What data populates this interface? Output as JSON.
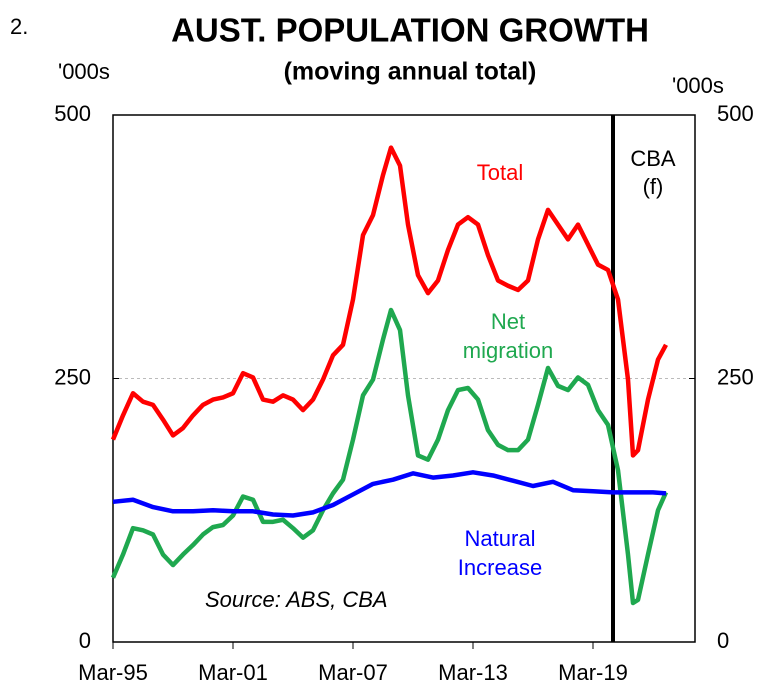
{
  "chart_data": {
    "type": "line",
    "number": "2.",
    "title": "AUST. POPULATION GROWTH",
    "subtitle": "(moving annual total)",
    "y_label": "'000s",
    "y2_label": "'000s",
    "source": "Source: ABS, CBA",
    "forecast_label": [
      "CBA",
      "(f)"
    ],
    "forecast_start": 2020,
    "xlim": [
      1995,
      2024.1
    ],
    "xticks": [
      {
        "value": 1995,
        "label": "Mar-95"
      },
      {
        "value": 2001,
        "label": "Mar-01"
      },
      {
        "value": 2007,
        "label": "Mar-07"
      },
      {
        "value": 2013,
        "label": "Mar-13"
      },
      {
        "value": 2019,
        "label": "Mar-19"
      }
    ],
    "ylim": [
      0,
      500
    ],
    "yticks": [
      0,
      250,
      500
    ],
    "y2lim": [
      0,
      500
    ],
    "y2ticks": [
      0,
      250,
      500
    ],
    "grid_at": [
      250
    ],
    "series": [
      {
        "name": "Total",
        "label_lines": [
          "Total"
        ],
        "color": "#ff0000",
        "x": [
          1995,
          1995.5,
          1996,
          1996.5,
          1997,
          1997.5,
          1998,
          1998.5,
          1999,
          1999.5,
          2000,
          2000.5,
          2001,
          2001.5,
          2002,
          2002.5,
          2003,
          2003.5,
          2004,
          2004.5,
          2005,
          2005.5,
          2006,
          2006.5,
          2007,
          2007.5,
          2008,
          2008.5,
          2008.9,
          2009.35,
          2009.75,
          2010.25,
          2010.75,
          2011.25,
          2011.75,
          2012.25,
          2012.75,
          2013.25,
          2013.75,
          2014.25,
          2014.75,
          2015.25,
          2015.75,
          2016.25,
          2016.75,
          2017.25,
          2017.75,
          2018.25,
          2018.75,
          2019.25,
          2019.75,
          2020.25,
          2020.75,
          2021.0,
          2021.25,
          2021.75,
          2022.25,
          2022.65
        ],
        "values": [
          192,
          215,
          236,
          228,
          225,
          211,
          196,
          203,
          215,
          225,
          230,
          232,
          236,
          255,
          251,
          230,
          228,
          234,
          230,
          220,
          230,
          249,
          272,
          282,
          325,
          386,
          405,
          443,
          469,
          452,
          396,
          348,
          331,
          343,
          372,
          396,
          403,
          396,
          367,
          343,
          338,
          334,
          343,
          382,
          410,
          396,
          382,
          396,
          377,
          358,
          353,
          325,
          249,
          177,
          182,
          230,
          268,
          282
        ]
      },
      {
        "name": "Net migration",
        "label_lines": [
          "Net",
          "migration"
        ],
        "color": "#1fa84f",
        "x": [
          1995,
          1995.5,
          1996,
          1996.5,
          1997,
          1997.5,
          1998,
          1998.5,
          1999,
          1999.5,
          2000,
          2000.5,
          2001,
          2001.5,
          2002,
          2002.5,
          2003,
          2003.5,
          2004,
          2004.5,
          2005,
          2005.5,
          2006,
          2006.5,
          2007,
          2007.5,
          2008,
          2008.5,
          2008.9,
          2009.35,
          2009.75,
          2010.25,
          2010.75,
          2011.25,
          2011.75,
          2012.25,
          2012.75,
          2013.25,
          2013.75,
          2014.25,
          2014.75,
          2015.25,
          2015.75,
          2016.25,
          2016.75,
          2017.25,
          2017.75,
          2018.25,
          2018.75,
          2019.25,
          2019.75,
          2020.25,
          2020.75,
          2021.0,
          2021.25,
          2021.75,
          2022.25,
          2022.65
        ],
        "values": [
          61,
          83,
          108,
          106,
          102,
          83,
          73,
          83,
          92,
          102,
          109,
          111,
          120,
          138,
          135,
          114,
          114,
          116,
          108,
          99,
          106,
          125,
          141,
          154,
          192,
          234,
          249,
          287,
          315,
          296,
          234,
          177,
          173,
          192,
          220,
          239,
          241,
          230,
          201,
          187,
          182,
          182,
          192,
          225,
          260,
          243,
          239,
          251,
          244,
          220,
          206,
          163,
          83,
          37,
          40,
          83,
          125,
          142
        ]
      },
      {
        "name": "Natural Increase",
        "label_lines": [
          "Natural",
          "Increase"
        ],
        "color": "#0000ff",
        "x": [
          1995,
          1996,
          1997,
          1998,
          1999,
          2000,
          2001,
          2002,
          2003,
          2004,
          2005,
          2006,
          2007,
          2008,
          2009,
          2010,
          2011,
          2012,
          2013,
          2014,
          2015,
          2016,
          2017,
          2018,
          2019,
          2020,
          2021,
          2022,
          2022.65
        ],
        "values": [
          133,
          135,
          128,
          124,
          124,
          125,
          124,
          124,
          121,
          120,
          123,
          130,
          140,
          150,
          154,
          160,
          156,
          158,
          161,
          158,
          153,
          148,
          152,
          144,
          143,
          142,
          142,
          142,
          141
        ]
      }
    ]
  }
}
